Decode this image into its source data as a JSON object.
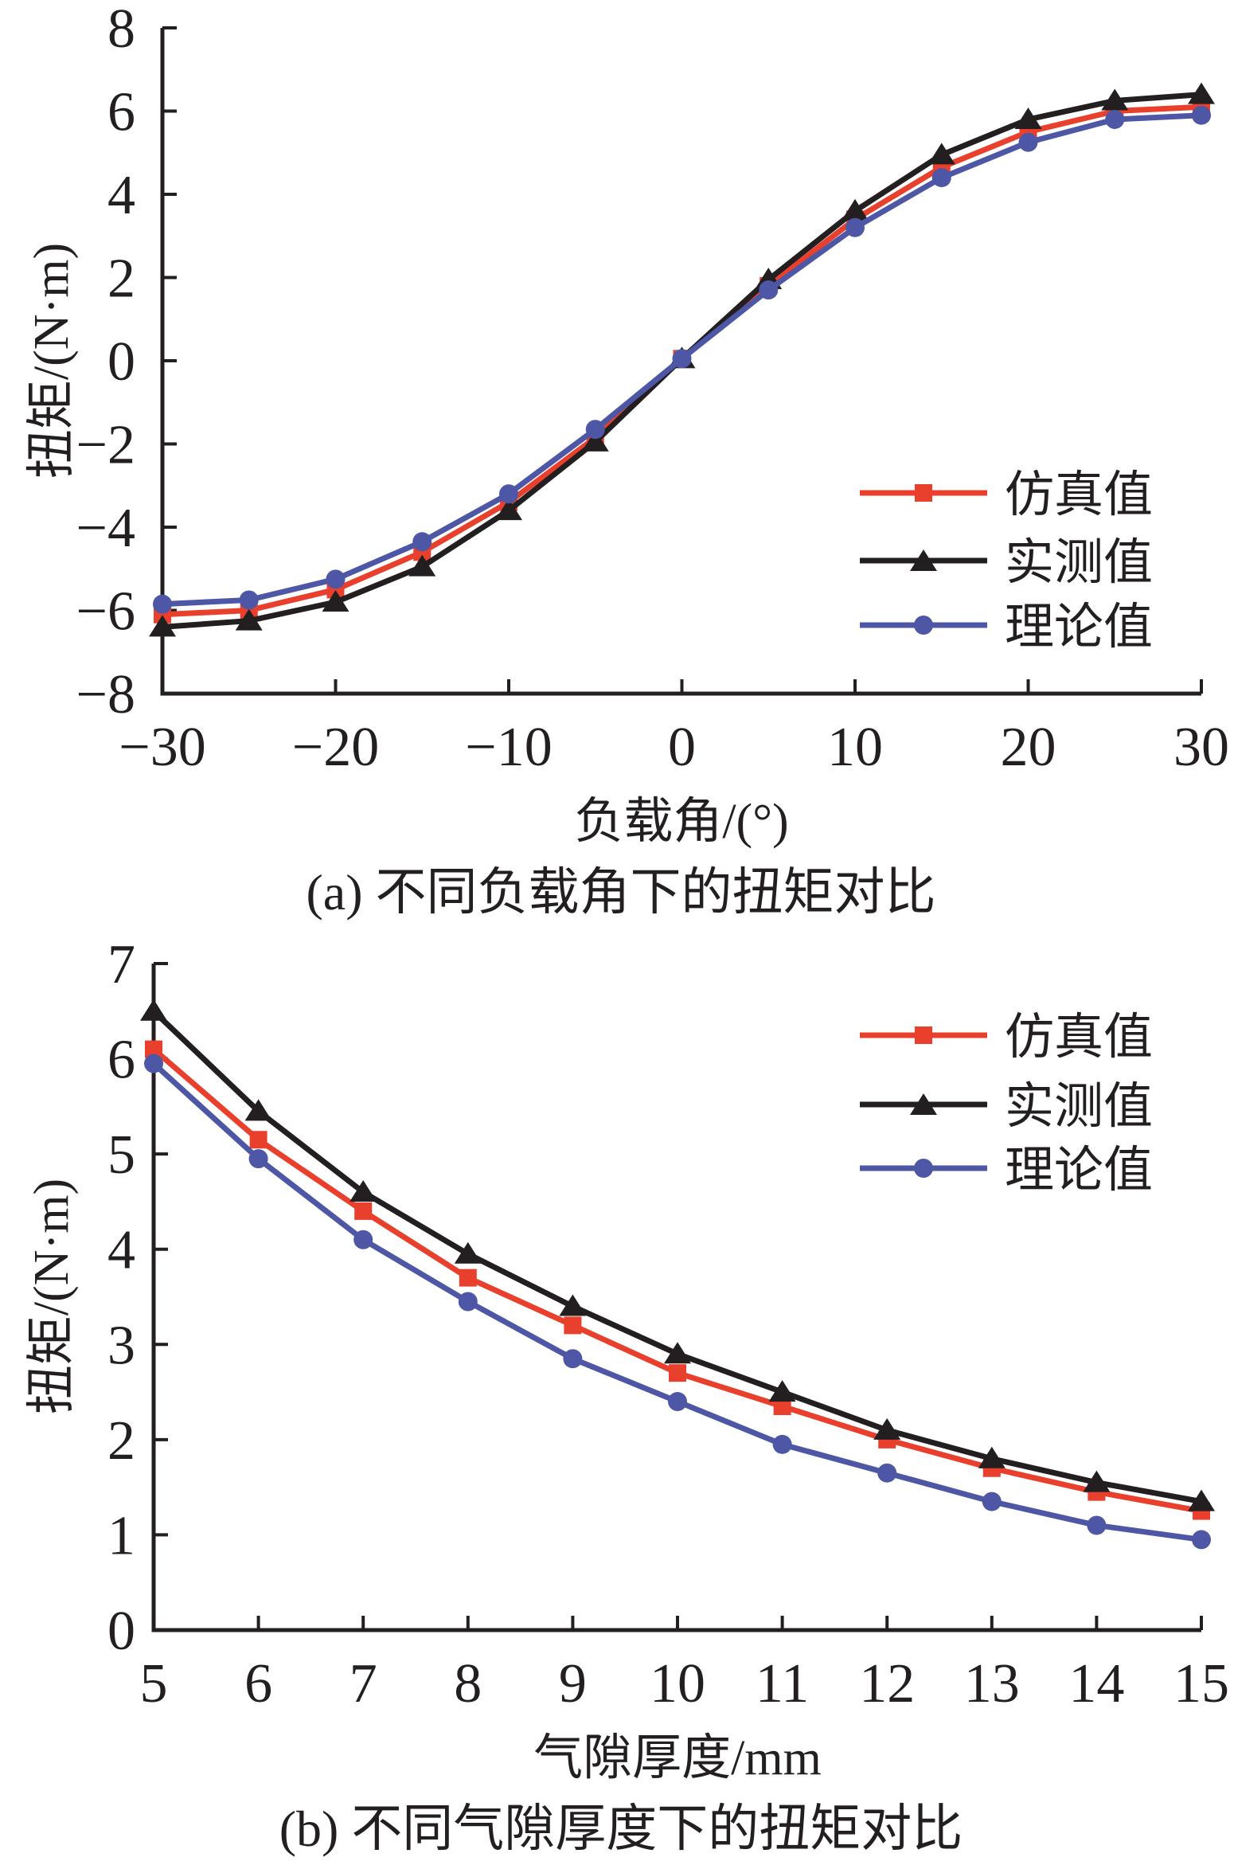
{
  "figure_background": "#ffffff",
  "colors": {
    "simulation": "#e8402c",
    "measured": "#231f20",
    "theory": "#4d57a5",
    "axis": "#231f20"
  },
  "chart_data": [
    {
      "panel": "a",
      "type": "line",
      "title": "(a) 不同负载角下的扭矩对比",
      "xlabel": "负载角/(°)",
      "ylabel": "扭矩/(N·m)",
      "xlim": [
        -30,
        30
      ],
      "ylim": [
        -8,
        8
      ],
      "xticks": [
        -30,
        -20,
        -10,
        0,
        10,
        20,
        30
      ],
      "yticks": [
        -8,
        -6,
        -4,
        -2,
        0,
        2,
        4,
        6,
        8
      ],
      "grid": false,
      "legend_position": "inside-right-middle",
      "x": [
        -30,
        -25,
        -20,
        -15,
        -10,
        -5,
        0,
        5,
        10,
        15,
        20,
        25,
        30
      ],
      "series": [
        {
          "name": "仿真值",
          "marker": "square",
          "color": "#e8402c",
          "values": [
            -6.1,
            -6.0,
            -5.5,
            -4.6,
            -3.4,
            -1.85,
            0.05,
            1.8,
            3.4,
            4.65,
            5.5,
            6.0,
            6.1
          ]
        },
        {
          "name": "实测值",
          "marker": "triangle",
          "color": "#231f20",
          "values": [
            -6.4,
            -6.25,
            -5.8,
            -4.95,
            -3.6,
            -1.95,
            0.05,
            1.95,
            3.6,
            4.95,
            5.8,
            6.25,
            6.4
          ]
        },
        {
          "name": "理论值",
          "marker": "circle",
          "color": "#4d57a5",
          "values": [
            -5.85,
            -5.75,
            -5.25,
            -4.35,
            -3.2,
            -1.65,
            0.05,
            1.7,
            3.2,
            4.4,
            5.25,
            5.8,
            5.9
          ]
        }
      ]
    },
    {
      "panel": "b",
      "type": "line",
      "title": "(b) 不同气隙厚度下的扭矩对比",
      "xlabel": "气隙厚度/mm",
      "ylabel": "扭矩/(N·m)",
      "xlim": [
        5,
        15
      ],
      "ylim": [
        0,
        7
      ],
      "xticks": [
        5,
        6,
        7,
        8,
        9,
        10,
        11,
        12,
        13,
        14,
        15
      ],
      "yticks": [
        0,
        1,
        2,
        3,
        4,
        5,
        6,
        7
      ],
      "grid": false,
      "legend_position": "inside-top-right",
      "x": [
        5,
        6,
        7,
        8,
        9,
        10,
        11,
        12,
        13,
        14,
        15
      ],
      "series": [
        {
          "name": "仿真值",
          "marker": "square",
          "color": "#e8402c",
          "values": [
            6.1,
            5.15,
            4.4,
            3.7,
            3.2,
            2.7,
            2.35,
            2.0,
            1.7,
            1.45,
            1.25
          ]
        },
        {
          "name": "实测值",
          "marker": "triangle",
          "color": "#231f20",
          "values": [
            6.5,
            5.45,
            4.6,
            3.95,
            3.4,
            2.9,
            2.5,
            2.1,
            1.8,
            1.55,
            1.35
          ]
        },
        {
          "name": "理论值",
          "marker": "circle",
          "color": "#4d57a5",
          "values": [
            5.95,
            4.95,
            4.1,
            3.45,
            2.85,
            2.4,
            1.95,
            1.65,
            1.35,
            1.1,
            0.95
          ]
        }
      ]
    }
  ]
}
